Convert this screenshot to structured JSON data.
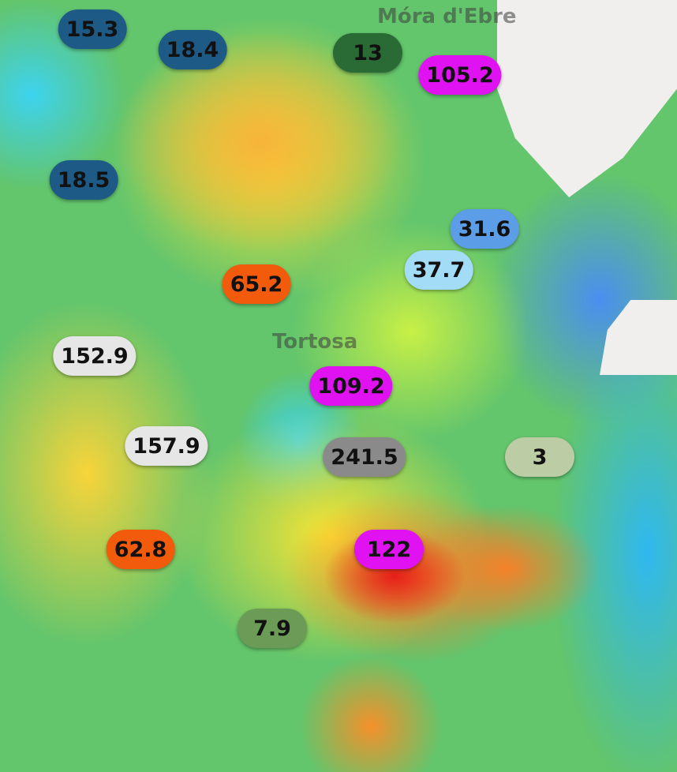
{
  "places": [
    "Móra d'Ebre",
    "Tortosa"
  ],
  "markers": [
    {
      "label": "15.3",
      "color": "#1d5a85"
    },
    {
      "label": "18.4",
      "color": "#1d5a85"
    },
    {
      "label": "13",
      "color": "#2a6a35"
    },
    {
      "label": "105.2",
      "color": "#e012f2"
    },
    {
      "label": "18.5",
      "color": "#1d5a85"
    },
    {
      "label": "31.6",
      "color": "#5b9de6"
    },
    {
      "label": "37.7",
      "color": "#a3dcf7"
    },
    {
      "label": "65.2",
      "color": "#f25a0c"
    },
    {
      "label": "152.9",
      "color": "#e6e6e6"
    },
    {
      "label": "109.2",
      "color": "#e012f2"
    },
    {
      "label": "157.9",
      "color": "#e6e6e6"
    },
    {
      "label": "241.5",
      "color": "#8a8a8a"
    },
    {
      "label": "3",
      "color": "#bccca4"
    },
    {
      "label": "62.8",
      "color": "#f25a0c"
    },
    {
      "label": "122",
      "color": "#e012f2"
    },
    {
      "label": "7.9",
      "color": "#6b9b56"
    }
  ]
}
